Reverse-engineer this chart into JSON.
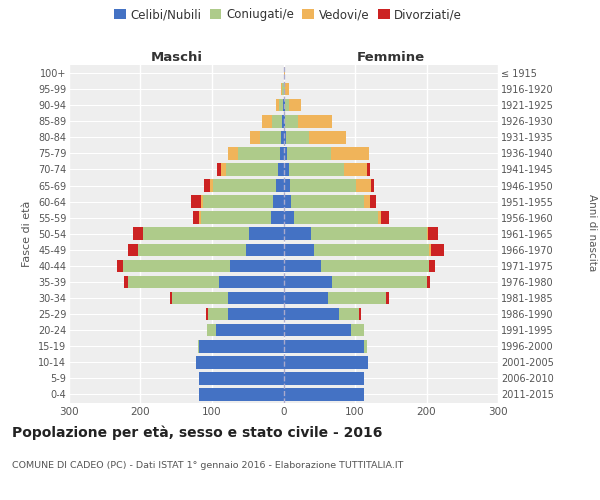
{
  "age_groups": [
    "100+",
    "95-99",
    "90-94",
    "85-89",
    "80-84",
    "75-79",
    "70-74",
    "65-69",
    "60-64",
    "55-59",
    "50-54",
    "45-49",
    "40-44",
    "35-39",
    "30-34",
    "25-29",
    "20-24",
    "15-19",
    "10-14",
    "5-9",
    "0-4"
  ],
  "birth_years": [
    "≤ 1915",
    "1916-1920",
    "1921-1925",
    "1926-1930",
    "1931-1935",
    "1936-1940",
    "1941-1945",
    "1946-1950",
    "1951-1955",
    "1956-1960",
    "1961-1965",
    "1966-1970",
    "1971-1975",
    "1976-1980",
    "1981-1985",
    "1986-1990",
    "1991-1995",
    "1996-2000",
    "2001-2005",
    "2006-2010",
    "2011-2015"
  ],
  "male_celibi": [
    0,
    0,
    1,
    2,
    3,
    5,
    8,
    10,
    15,
    18,
    48,
    52,
    75,
    90,
    78,
    78,
    95,
    118,
    122,
    118,
    118
  ],
  "male_coniugati": [
    0,
    2,
    5,
    14,
    30,
    58,
    72,
    88,
    98,
    98,
    148,
    152,
    150,
    128,
    78,
    28,
    12,
    2,
    0,
    0,
    0
  ],
  "male_vedovi": [
    0,
    2,
    5,
    14,
    14,
    14,
    8,
    5,
    3,
    2,
    0,
    0,
    0,
    0,
    0,
    0,
    0,
    0,
    0,
    0,
    0
  ],
  "male_divorziati": [
    0,
    0,
    0,
    0,
    0,
    0,
    5,
    8,
    14,
    8,
    14,
    14,
    8,
    5,
    3,
    2,
    0,
    0,
    0,
    0,
    0
  ],
  "female_nubili": [
    0,
    0,
    2,
    2,
    3,
    5,
    7,
    9,
    11,
    14,
    38,
    42,
    52,
    68,
    62,
    78,
    95,
    112,
    118,
    112,
    112
  ],
  "female_coniugate": [
    0,
    2,
    5,
    18,
    33,
    62,
    78,
    92,
    102,
    118,
    162,
    162,
    152,
    132,
    82,
    28,
    18,
    5,
    0,
    0,
    0
  ],
  "female_vedove": [
    2,
    5,
    18,
    48,
    52,
    52,
    32,
    22,
    8,
    4,
    2,
    2,
    0,
    0,
    0,
    0,
    0,
    0,
    0,
    0,
    0
  ],
  "female_divorziate": [
    0,
    0,
    0,
    0,
    0,
    0,
    4,
    4,
    8,
    12,
    14,
    18,
    8,
    5,
    3,
    2,
    0,
    0,
    0,
    0,
    0
  ],
  "color_celibi": "#4472C4",
  "color_coniugati": "#AECB8A",
  "color_vedovi": "#F0B45A",
  "color_divorziati": "#CC2222",
  "legend_labels": [
    "Celibi/Nubili",
    "Coniugati/e",
    "Vedovi/e",
    "Divorziati/e"
  ],
  "title": "Popolazione per età, sesso e stato civile - 2016",
  "subtitle": "COMUNE DI CADEO (PC) - Dati ISTAT 1° gennaio 2016 - Elaborazione TUTTITALIA.IT",
  "label_maschi": "Maschi",
  "label_femmine": "Femmine",
  "label_fasce": "Fasce di età",
  "label_anni": "Anni di nascita",
  "xlim": 300,
  "bg_color": "#ffffff",
  "plot_bg": "#eeeeee"
}
